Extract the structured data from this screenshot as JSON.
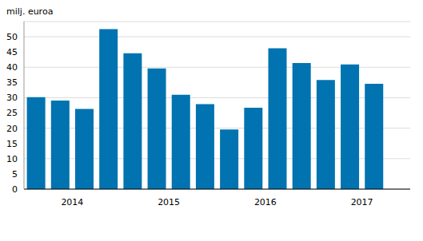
{
  "chart_data": {
    "type": "bar",
    "y_label": "milj. euroa",
    "categories": [
      null,
      "2014",
      null,
      null,
      null,
      "2015",
      null,
      null,
      null,
      "2016",
      null,
      null,
      null,
      "2017",
      null,
      null
    ],
    "values": [
      30.2,
      29.1,
      26.3,
      52.5,
      44.6,
      39.6,
      31.0,
      27.9,
      19.6,
      26.7,
      46.2,
      41.4,
      35.8,
      40.9,
      34.6,
      null
    ],
    "color": "#0073b0",
    "ylim": [
      0,
      55
    ],
    "yticks": [
      0,
      5,
      10,
      15,
      20,
      25,
      30,
      35,
      40,
      45,
      50
    ],
    "grid": true
  }
}
